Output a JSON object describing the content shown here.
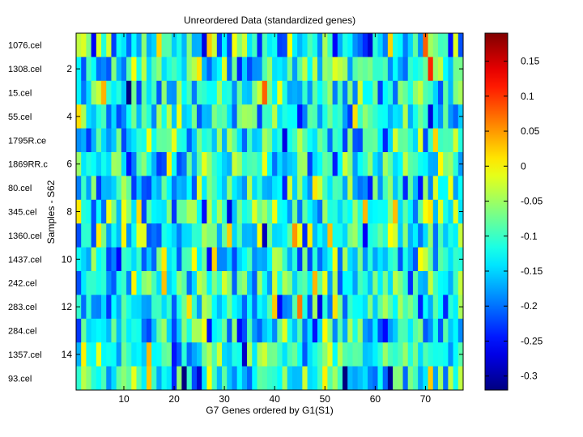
{
  "chart_data": {
    "type": "heatmap",
    "title": "Unreordered Data (standardized genes)",
    "xlabel": "G7 Genes ordered by G1(S1)",
    "ylabel": "Samples - S62",
    "n_cols": 77,
    "n_rows": 15,
    "x_ticks": [
      10,
      20,
      30,
      40,
      50,
      60,
      70
    ],
    "y_ticks": [
      2,
      4,
      6,
      8,
      10,
      12,
      14
    ],
    "row_labels": [
      "1076.cel",
      "1308.cel",
      "15.cel",
      "55.cel",
      "1795R.ce",
      "1869RR.c",
      "80.cel",
      "345.cel",
      "1360.cel",
      "1437.cel",
      "242.cel",
      "283.cel",
      "284.cel",
      "1357.cel",
      "93.cel"
    ],
    "colorbar": {
      "range": [
        -0.32,
        0.19
      ],
      "ticks": [
        0.15,
        0.1,
        0.05,
        0,
        -0.05,
        -0.1,
        -0.15,
        -0.2,
        -0.25,
        -0.3
      ],
      "tick_labels": [
        "0.15",
        "0.1",
        "0.05",
        "0",
        "-0.05",
        "-0.1",
        "-0.15",
        "-0.2",
        "-0.25",
        "-0.3"
      ],
      "colormap": "jet"
    },
    "value_model": {
      "mean": -0.12,
      "spread": 0.065,
      "seed": 62
    }
  }
}
